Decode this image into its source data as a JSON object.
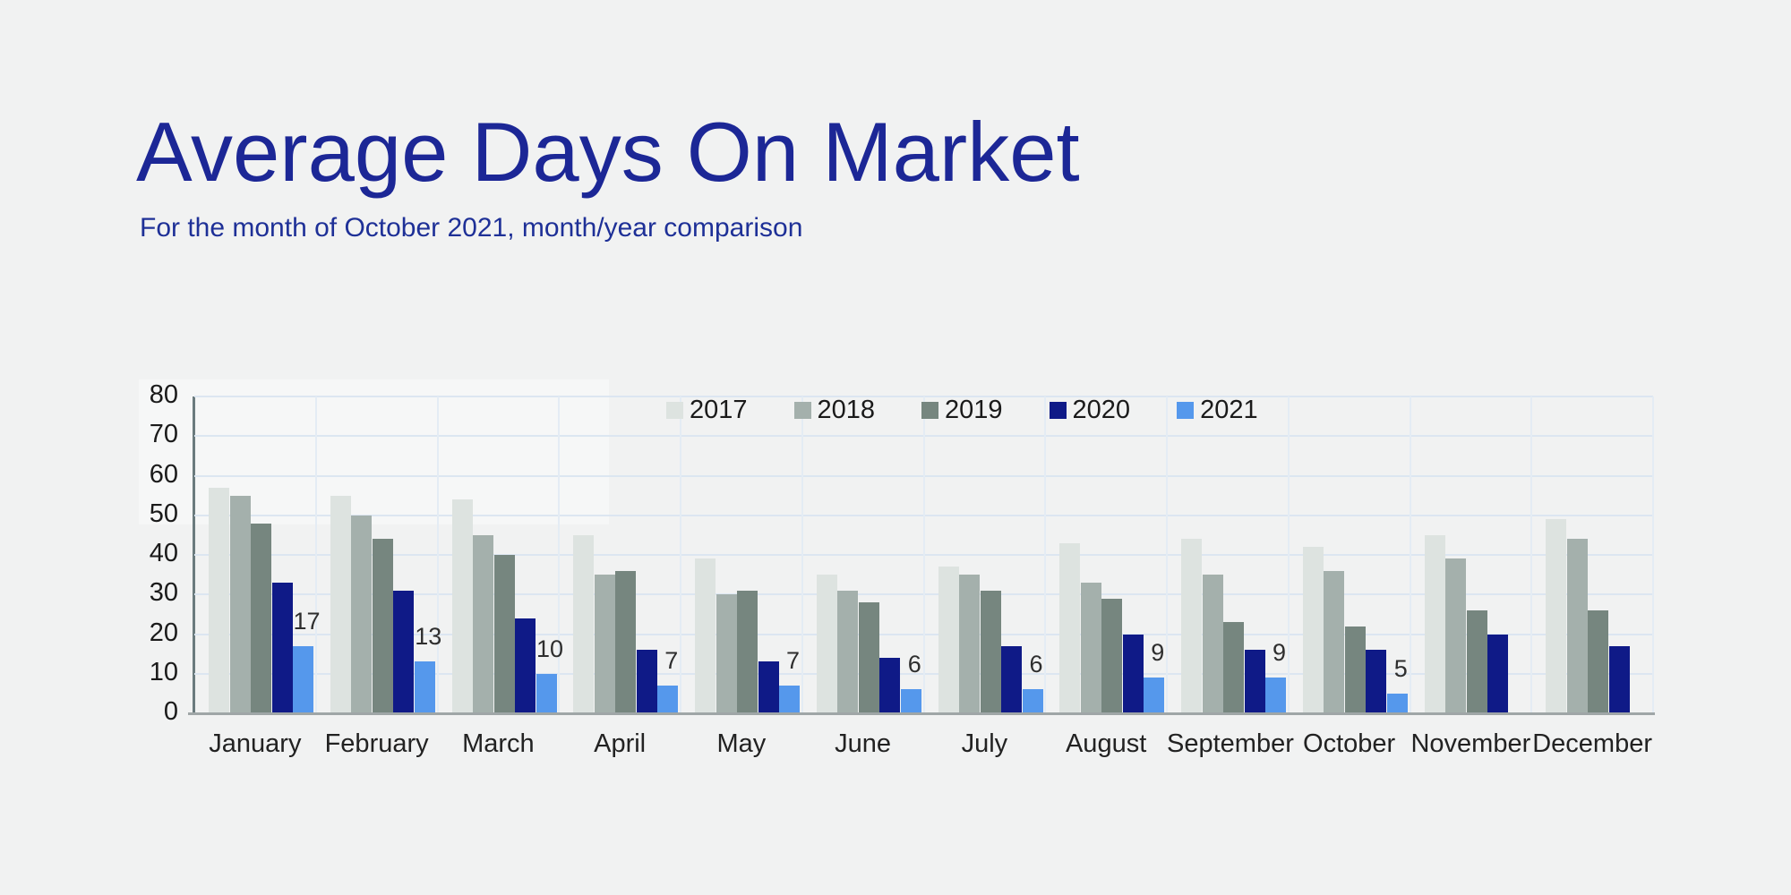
{
  "header": {
    "title": "Average Days On Market",
    "subtitle": "For the month of October 2021, month/year comparison",
    "title_color": "#1c2796",
    "subtitle_color": "#1e3097"
  },
  "chart_data": {
    "type": "bar",
    "title": "Average Days On Market",
    "subtitle": "For the month of October 2021, month/year comparison",
    "categories": [
      "January",
      "February",
      "March",
      "April",
      "May",
      "June",
      "July",
      "August",
      "September",
      "October",
      "November",
      "December"
    ],
    "series": [
      {
        "name": "2017",
        "color": "#dde3e0",
        "values": [
          57,
          55,
          54,
          45,
          39,
          35,
          37,
          43,
          44,
          42,
          45,
          49
        ]
      },
      {
        "name": "2018",
        "color": "#a4b0ac",
        "values": [
          55,
          50,
          45,
          35,
          30,
          31,
          35,
          33,
          35,
          36,
          39,
          44
        ]
      },
      {
        "name": "2019",
        "color": "#76867f",
        "values": [
          48,
          44,
          40,
          36,
          31,
          28,
          31,
          29,
          23,
          22,
          26,
          26
        ]
      },
      {
        "name": "2020",
        "color": "#0f1a87",
        "values": [
          33,
          31,
          24,
          16,
          13,
          14,
          17,
          20,
          16,
          16,
          20,
          17
        ]
      },
      {
        "name": "2021",
        "color": "#5598ec",
        "values": [
          17,
          13,
          10,
          7,
          7,
          6,
          6,
          9,
          9,
          5,
          null,
          null
        ],
        "data_labels": true
      }
    ],
    "ylabel": "",
    "xlabel": "",
    "ylim": [
      0,
      80
    ],
    "ytick_step": 10,
    "grid": "horizontal-and-vertical-light-blue",
    "legend_position": "top-center",
    "legend_entries": [
      "2017",
      "2018",
      "2019",
      "2020",
      "2021"
    ],
    "data_label_values": {
      "January": 17,
      "February": 13,
      "March": 10,
      "April": 7,
      "May": 7,
      "June": 6,
      "July": 6,
      "August": 9,
      "September": 9,
      "October": 5
    }
  },
  "colors": {
    "background": "#f1f2f2",
    "gridline": "#dce6f1",
    "axis_y": "#6b7b7e",
    "axis_x": "#9fa6a7",
    "tick_text": "#1a1a1a"
  }
}
